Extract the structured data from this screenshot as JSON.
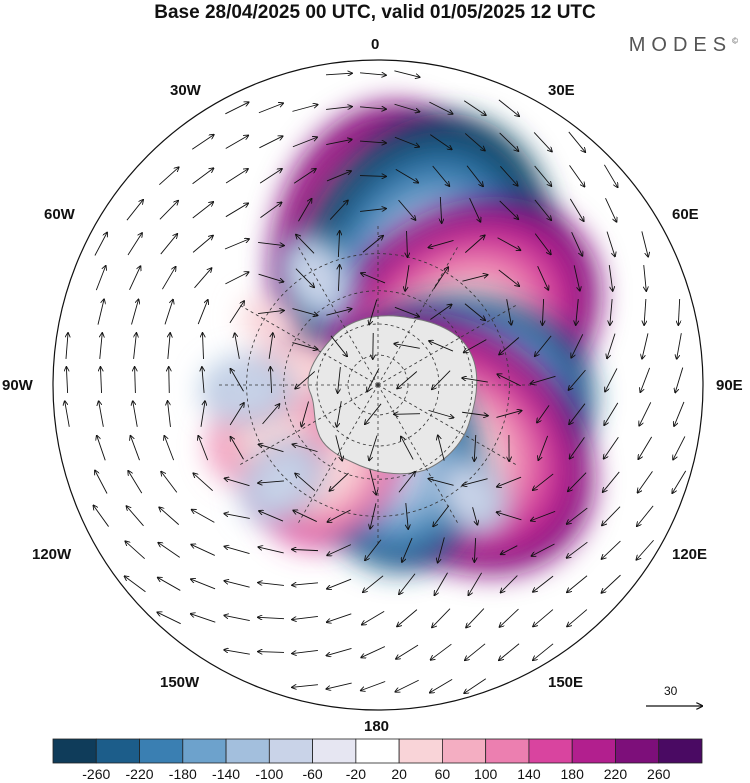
{
  "title": "Base 28/04/2025 00 UTC, valid 01/05/2025 12 UTC",
  "logo": "MODES",
  "logo_mark": "©",
  "longitude_labels": {
    "n": "0",
    "ne": "30E",
    "ene": "60E",
    "e": "90E",
    "ese": "120E",
    "se": "150E",
    "s": "180",
    "sw": "150W",
    "wsw": "120W",
    "w": "90W",
    "wnw": "60W",
    "nw": "30W"
  },
  "vector_scale": "30",
  "colorbar": {
    "labels": [
      "-260",
      "-220",
      "-180",
      "-140",
      "-100",
      "-60",
      "-20",
      "20",
      "60",
      "100",
      "140",
      "180",
      "220",
      "260"
    ],
    "colors": [
      "#0f3c5a",
      "#1c5d8a",
      "#3a7fb2",
      "#6da2cc",
      "#a3bfdd",
      "#c9d3e8",
      "#e6e6f2",
      "#ffffff",
      "#f9d4d8",
      "#f4aec2",
      "#ec7fb0",
      "#d9449f",
      "#b21f8e",
      "#7d0f7a",
      "#4a0a63"
    ]
  },
  "map": {
    "projection": "south-polar-stereographic",
    "anomalies": [
      {
        "lon": 5,
        "lat": -32,
        "value": 230
      },
      {
        "lon": 22,
        "lat": -35,
        "value": -250
      },
      {
        "lon": 55,
        "lat": -43,
        "value": 220
      },
      {
        "lon": 95,
        "lat": -47,
        "value": -210
      },
      {
        "lon": 128,
        "lat": -44,
        "value": 220
      },
      {
        "lon": 170,
        "lat": -55,
        "value": -180
      },
      {
        "lon": -150,
        "lat": -45,
        "value": 140
      },
      {
        "lon": -115,
        "lat": -35,
        "value": 110
      },
      {
        "lon": -80,
        "lat": -52,
        "value": 90
      },
      {
        "lon": -60,
        "lat": -33,
        "value": 50
      },
      {
        "lon": -30,
        "lat": -33,
        "value": -90
      },
      {
        "lon": -92,
        "lat": -30,
        "value": -70
      },
      {
        "lon": -135,
        "lat": -28,
        "value": -80
      },
      {
        "lon": 140,
        "lat": -25,
        "value": -60
      }
    ]
  }
}
